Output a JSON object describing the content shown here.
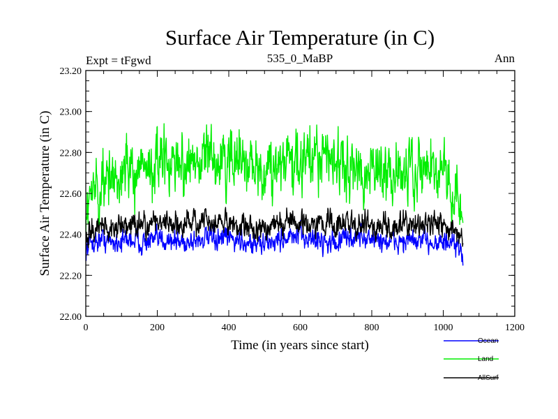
{
  "chart_data": {
    "type": "line",
    "title": "Surface Air Temperature (in C)",
    "subtitle_left": "Expt = tFgwd",
    "subtitle_center": "535_0_MaBP",
    "subtitle_right": "Ann",
    "xlabel": "Time (in years since start)",
    "ylabel": "Surface Air Temperature (in C)",
    "xlim": [
      0,
      1200
    ],
    "ylim": [
      22.0,
      23.2
    ],
    "xticks": [
      0,
      200,
      400,
      600,
      800,
      1000,
      1200
    ],
    "xtick_labels": [
      "0",
      "200",
      "400",
      "600",
      "800",
      "1000",
      "1200"
    ],
    "yticks": [
      22.0,
      22.2,
      22.4,
      22.6,
      22.8,
      23.0,
      23.2
    ],
    "ytick_labels": [
      "22.00",
      "22.20",
      "22.40",
      "22.60",
      "22.80",
      "23.00",
      "23.20"
    ],
    "grid": false,
    "legend_position": "bottom-right",
    "series": [
      {
        "name": "Ocean",
        "color": "#0000ff",
        "x": [
          0,
          15,
          30,
          50,
          70,
          100,
          130,
          160,
          200,
          230,
          260,
          300,
          330,
          360,
          400,
          430,
          460,
          500,
          530,
          560,
          600,
          630,
          660,
          700,
          730,
          760,
          800,
          830,
          860,
          900,
          930,
          960,
          1000,
          1030,
          1055
        ],
        "y": [
          22.33,
          22.36,
          22.37,
          22.38,
          22.36,
          22.37,
          22.38,
          22.36,
          22.37,
          22.38,
          22.36,
          22.37,
          22.38,
          22.37,
          22.38,
          22.37,
          22.36,
          22.35,
          22.37,
          22.38,
          22.39,
          22.38,
          22.37,
          22.36,
          22.38,
          22.39,
          22.38,
          22.37,
          22.36,
          22.37,
          22.36,
          22.37,
          22.36,
          22.34,
          22.3
        ],
        "amplitude": 0.08
      },
      {
        "name": "Land",
        "color": "#00ee00",
        "x": [
          0,
          15,
          30,
          50,
          70,
          100,
          130,
          160,
          200,
          230,
          260,
          300,
          330,
          360,
          400,
          430,
          460,
          500,
          530,
          560,
          600,
          630,
          660,
          700,
          730,
          760,
          800,
          830,
          860,
          900,
          930,
          960,
          1000,
          1030,
          1055
        ],
        "y": [
          22.55,
          22.6,
          22.62,
          22.65,
          22.68,
          22.7,
          22.72,
          22.73,
          22.74,
          22.75,
          22.74,
          22.76,
          22.77,
          22.75,
          22.76,
          22.74,
          22.73,
          22.72,
          22.74,
          22.75,
          22.76,
          22.77,
          22.78,
          22.76,
          22.74,
          22.72,
          22.7,
          22.71,
          22.72,
          22.73,
          22.74,
          22.72,
          22.7,
          22.66,
          22.55
        ],
        "amplitude": 0.22
      },
      {
        "name": "AllSurf",
        "color": "#000000",
        "x": [
          0,
          15,
          30,
          50,
          70,
          100,
          130,
          160,
          200,
          230,
          260,
          300,
          330,
          360,
          400,
          430,
          460,
          500,
          530,
          560,
          600,
          630,
          660,
          700,
          730,
          760,
          800,
          830,
          860,
          900,
          930,
          960,
          1000,
          1030,
          1055
        ],
        "y": [
          22.38,
          22.41,
          22.43,
          22.44,
          22.43,
          22.44,
          22.45,
          22.44,
          22.45,
          22.46,
          22.45,
          22.46,
          22.47,
          22.45,
          22.46,
          22.45,
          22.44,
          22.43,
          22.45,
          22.46,
          22.47,
          22.46,
          22.46,
          22.45,
          22.46,
          22.46,
          22.45,
          22.44,
          22.44,
          22.45,
          22.44,
          22.45,
          22.44,
          22.41,
          22.36
        ],
        "amplitude": 0.09
      }
    ]
  }
}
